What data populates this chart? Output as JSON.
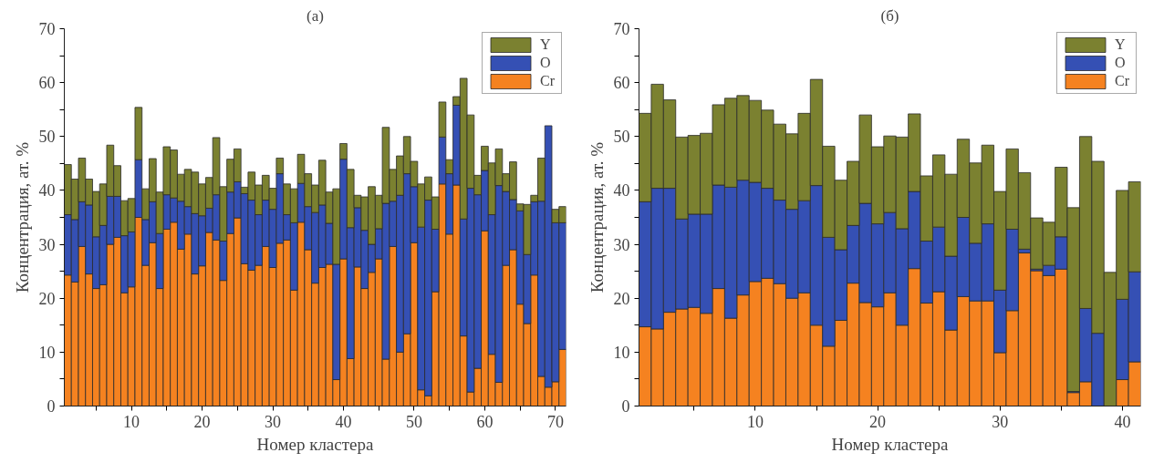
{
  "chart_data": [
    {
      "type": "bar",
      "title": "(a)",
      "xlabel": "Номер кластера",
      "ylabel": "Концентрация, ат. %",
      "stacked": true,
      "legend": "top right",
      "grid": false,
      "x": [
        1,
        2,
        3,
        4,
        5,
        6,
        7,
        8,
        9,
        10,
        11,
        12,
        13,
        14,
        15,
        16,
        17,
        18,
        19,
        20,
        21,
        22,
        23,
        24,
        25,
        26,
        27,
        28,
        29,
        30,
        31,
        32,
        33,
        34,
        35,
        36,
        37,
        38,
        39,
        40,
        41,
        42,
        43,
        44,
        45,
        46,
        47,
        48,
        49,
        50,
        51,
        52,
        53,
        54,
        55,
        56,
        57,
        58,
        59,
        60,
        61,
        62,
        63,
        64,
        65,
        66,
        67,
        68,
        69,
        70,
        71
      ],
      "xlim": [
        0.5,
        71.5
      ],
      "ylim": [
        0,
        70
      ],
      "xticks": [
        {
          "value": 5,
          "label": null
        },
        10,
        {
          "value": 15,
          "label": null
        },
        20,
        {
          "value": 25,
          "label": null
        },
        30,
        {
          "value": 35,
          "label": null
        },
        40,
        {
          "value": 45,
          "label": null
        },
        50,
        {
          "value": 55,
          "label": null
        },
        60,
        {
          "value": 65,
          "label": null
        },
        70
      ],
      "yticks": [
        0,
        {
          "value": 5,
          "label": null
        },
        10,
        {
          "value": 15,
          "label": null
        },
        20,
        {
          "value": 25,
          "label": null
        },
        30,
        {
          "value": 35,
          "label": null
        },
        40,
        {
          "value": 45,
          "label": null
        },
        50,
        {
          "value": 55,
          "label": null
        },
        60,
        {
          "value": 65,
          "label": null
        },
        70
      ],
      "series": [
        {
          "name": "Cr",
          "color": "#f58220",
          "values": [
            24.3,
            23.0,
            29.6,
            24.5,
            21.8,
            22.5,
            30.0,
            31.3,
            21.0,
            22.1,
            35.0,
            26.1,
            30.3,
            21.8,
            32.8,
            34.1,
            29.1,
            31.9,
            24.5,
            26.0,
            32.2,
            30.8,
            23.3,
            32.0,
            34.9,
            26.4,
            25.2,
            26.1,
            29.6,
            25.7,
            30.2,
            30.8,
            21.5,
            34.1,
            29.0,
            22.8,
            25.7,
            26.3,
            4.9,
            27.3,
            8.8,
            25.8,
            21.8,
            24.8,
            27.3,
            8.7,
            29.6,
            10.0,
            13.4,
            30.3,
            3.0,
            1.9,
            21.2,
            41.2,
            31.9,
            41.0,
            13.0,
            2.6,
            7.0,
            32.5,
            9.6,
            4.4,
            26.1,
            29.0,
            18.9,
            15.3,
            24.3,
            5.5,
            3.5,
            4.5,
            10.5
          ]
        },
        {
          "name": "O",
          "color": "#3550b4",
          "values": [
            11.2,
            11.6,
            8.3,
            12.8,
            9.6,
            11.0,
            8.9,
            7.6,
            10.6,
            10.2,
            10.7,
            8.5,
            7.6,
            10.2,
            6.4,
            4.5,
            8.9,
            5.1,
            11.2,
            9.3,
            4.5,
            8.4,
            7.3,
            7.7,
            6.7,
            13.0,
            13.0,
            9.4,
            8.6,
            10.8,
            12.9,
            4.7,
            12.5,
            7.2,
            8.0,
            13.1,
            11.6,
            7.6,
            21.4,
            18.5,
            24.3,
            11.0,
            10.8,
            5.2,
            5.6,
            28.9,
            8.4,
            29.1,
            29.7,
            10.4,
            30.2,
            36.3,
            11.6,
            8.7,
            11.2,
            14.8,
            21.7,
            37.8,
            32.2,
            11.2,
            25.9,
            36.5,
            13.7,
            9.3,
            17.3,
            12.8,
            13.6,
            32.5,
            48.5,
            29.5,
            23.5
          ]
        },
        {
          "name": "Y",
          "color": "#7b8130",
          "values": [
            9.3,
            7.5,
            8.1,
            4.8,
            8.4,
            7.7,
            9.5,
            5.7,
            6.5,
            6.2,
            9.7,
            5.7,
            8.0,
            7.7,
            8.9,
            8.9,
            5.0,
            6.9,
            7.7,
            5.9,
            5.7,
            10.6,
            10.1,
            6.1,
            6.1,
            1.2,
            5.2,
            5.5,
            4.6,
            3.9,
            2.9,
            5.7,
            6.3,
            5.4,
            6.1,
            5.1,
            8.3,
            5.8,
            14.0,
            2.9,
            10.8,
            2.3,
            6.2,
            10.7,
            6.2,
            14.1,
            5.9,
            7.3,
            6.9,
            4.7,
            8.0,
            4.3,
            6.0,
            6.5,
            2.6,
            1.6,
            26.1,
            13.6,
            3.6,
            4.5,
            9.6,
            6.8,
            3.3,
            7.0,
            1.3,
            9.3,
            1.2,
            8.0,
            null,
            2.5,
            3.0
          ]
        }
      ]
    },
    {
      "type": "bar",
      "title": "(б)",
      "xlabel": "Номер кластера",
      "ylabel": "Концентрация, ат. %",
      "stacked": true,
      "legend": "top right",
      "grid": false,
      "x": [
        1,
        2,
        3,
        4,
        5,
        6,
        7,
        8,
        9,
        10,
        11,
        12,
        13,
        14,
        15,
        16,
        17,
        18,
        19,
        20,
        21,
        22,
        23,
        24,
        25,
        26,
        27,
        28,
        29,
        30,
        31,
        32,
        33,
        34,
        35,
        36,
        37,
        38,
        39,
        40,
        41
      ],
      "xlim": [
        0.5,
        41.5
      ],
      "ylim": [
        0,
        70
      ],
      "xticks": [
        {
          "value": 5,
          "label": null
        },
        10,
        {
          "value": 15,
          "label": null
        },
        20,
        {
          "value": 25,
          "label": null
        },
        30,
        {
          "value": 35,
          "label": null
        },
        40
      ],
      "yticks": [
        0,
        {
          "value": 5,
          "label": null
        },
        10,
        {
          "value": 15,
          "label": null
        },
        20,
        {
          "value": 25,
          "label": null
        },
        30,
        {
          "value": 35,
          "label": null
        },
        40,
        {
          "value": 45,
          "label": null
        },
        50,
        {
          "value": 55,
          "label": null
        },
        60,
        {
          "value": 65,
          "label": null
        },
        70
      ],
      "series": [
        {
          "name": "Cr",
          "color": "#f58220",
          "values": [
            14.7,
            14.3,
            17.4,
            18.0,
            18.3,
            17.2,
            21.8,
            16.3,
            20.6,
            23.1,
            23.7,
            22.7,
            20.0,
            21.0,
            15.0,
            11.1,
            15.9,
            22.8,
            19.2,
            18.4,
            21.0,
            15.0,
            25.5,
            19.1,
            21.2,
            14.1,
            20.3,
            19.5,
            19.5,
            9.9,
            17.7,
            28.4,
            25.1,
            24.2,
            25.4,
            2.5,
            4.5,
            null,
            null,
            4.9,
            8.2
          ]
        },
        {
          "name": "O",
          "color": "#3550b4",
          "values": [
            23.2,
            26.1,
            23.0,
            16.7,
            17.3,
            18.4,
            19.2,
            24.3,
            21.3,
            18.4,
            16.7,
            15.5,
            16.5,
            17.1,
            25.9,
            20.2,
            13.1,
            10.7,
            18.4,
            15.4,
            14.9,
            17.9,
            14.3,
            11.5,
            12.0,
            13.7,
            14.7,
            10.7,
            14.3,
            11.6,
            15.1,
            0.7,
            0.3,
            1.9,
            6.0,
            0.2,
            13.6,
            13.5,
            null,
            14.9,
            16.7
          ]
        },
        {
          "name": "Y",
          "color": "#7b8130",
          "values": [
            16.4,
            19.3,
            16.4,
            15.2,
            14.6,
            15.0,
            14.9,
            16.5,
            15.7,
            15.2,
            14.5,
            14.1,
            14.0,
            16.2,
            19.7,
            16.9,
            12.9,
            11.9,
            16.4,
            14.3,
            14.2,
            17.0,
            14.4,
            12.1,
            13.4,
            15.2,
            14.5,
            14.9,
            14.6,
            18.3,
            14.9,
            14.2,
            9.5,
            8.0,
            12.9,
            34.1,
            31.9,
            31.9,
            24.8,
            20.2,
            16.7
          ]
        }
      ]
    }
  ]
}
